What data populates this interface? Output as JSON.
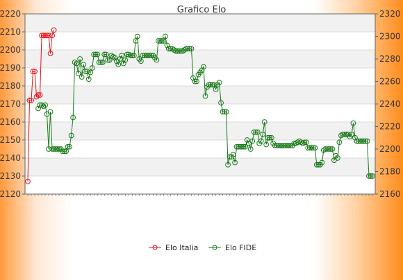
{
  "chart_data": {
    "type": "line",
    "title": "Grafico Elo",
    "xlabel": "",
    "ylabel": "",
    "y_left": {
      "min": 2120,
      "max": 2220,
      "ticks": [
        2120,
        2130,
        2140,
        2150,
        2160,
        2170,
        2180,
        2190,
        2200,
        2210,
        2220
      ]
    },
    "y_right": {
      "min": 2160,
      "max": 2320,
      "ticks": [
        2160,
        2180,
        2200,
        2220,
        2240,
        2260,
        2280,
        2300,
        2320
      ]
    },
    "grid": true,
    "legend_position": "bottom",
    "series": [
      {
        "name": "Elo Italia",
        "axis": "left",
        "color": "#e8121a",
        "values": [
          2127,
          2172,
          2172,
          2188,
          2188,
          2174,
          2175,
          2175,
          2208,
          2208,
          2208,
          2208,
          2208,
          2198,
          2208,
          2211
        ]
      },
      {
        "name": "Elo FIDE",
        "axis": "right",
        "color": "#1a7a1a",
        "values": [
          null,
          null,
          null,
          null,
          null,
          null,
          2236,
          2239,
          2239,
          2238,
          2239,
          2231,
          2200,
          2233,
          2200,
          2200,
          2200,
          2200,
          2200,
          2200,
          2198,
          2198,
          2198,
          2202,
          2202,
          2212,
          2228,
          2277,
          2276,
          2267,
          2280,
          2264,
          2275,
          2269,
          2269,
          2262,
          2268,
          2272,
          2284,
          2284,
          2284,
          2277,
          2277,
          2277,
          2284,
          2284,
          2279,
          2279,
          2283,
          2282,
          2281,
          2278,
          2275,
          2280,
          2283,
          2276,
          2279,
          2284,
          2284,
          2283,
          2283,
          2283,
          2296,
          2300,
          2280,
          2278,
          2283,
          2283,
          2283,
          2283,
          2283,
          2283,
          2283,
          2281,
          2279,
          2296,
          2296,
          2296,
          2296,
          2300,
          2292,
          2289,
          2289,
          2289,
          2288,
          2287,
          2287,
          2287,
          2287,
          2287,
          2288,
          2289,
          2289,
          2289,
          2289,
          2263,
          2260,
          2260,
          2266,
          2268,
          2270,
          2273,
          2247,
          2255,
          2257,
          2257,
          2257,
          2257,
          2253,
          2257,
          2259,
          2241,
          2233,
          2233,
          2233,
          2186,
          2193,
          2193,
          2195,
          2188,
          2202,
          2202,
          2202,
          2202,
          2202,
          2202,
          2208,
          2205,
          2200,
          2207,
          2215,
          2215,
          2215,
          2205,
          2207,
          2213,
          2224,
          2204,
          2210,
          2210,
          2210,
          2205,
          2203,
          2203,
          2203,
          2203,
          2203,
          2203,
          2203,
          2203,
          2203,
          2203,
          2203,
          2205,
          2205,
          2206,
          2207,
          2206,
          2205,
          2206,
          2206,
          2201,
          2201,
          2201,
          2201,
          2201,
          2186,
          2186,
          2186,
          2188,
          2199,
          2200,
          2200,
          2200,
          2200,
          2200,
          2190,
          2194,
          2192,
          2206,
          2212,
          2213,
          2213,
          2213,
          2213,
          2211,
          2213,
          2223,
          2210,
          2207,
          2207,
          2207,
          2207,
          2207,
          2207,
          2207,
          2176,
          2176,
          2176
        ]
      }
    ]
  }
}
